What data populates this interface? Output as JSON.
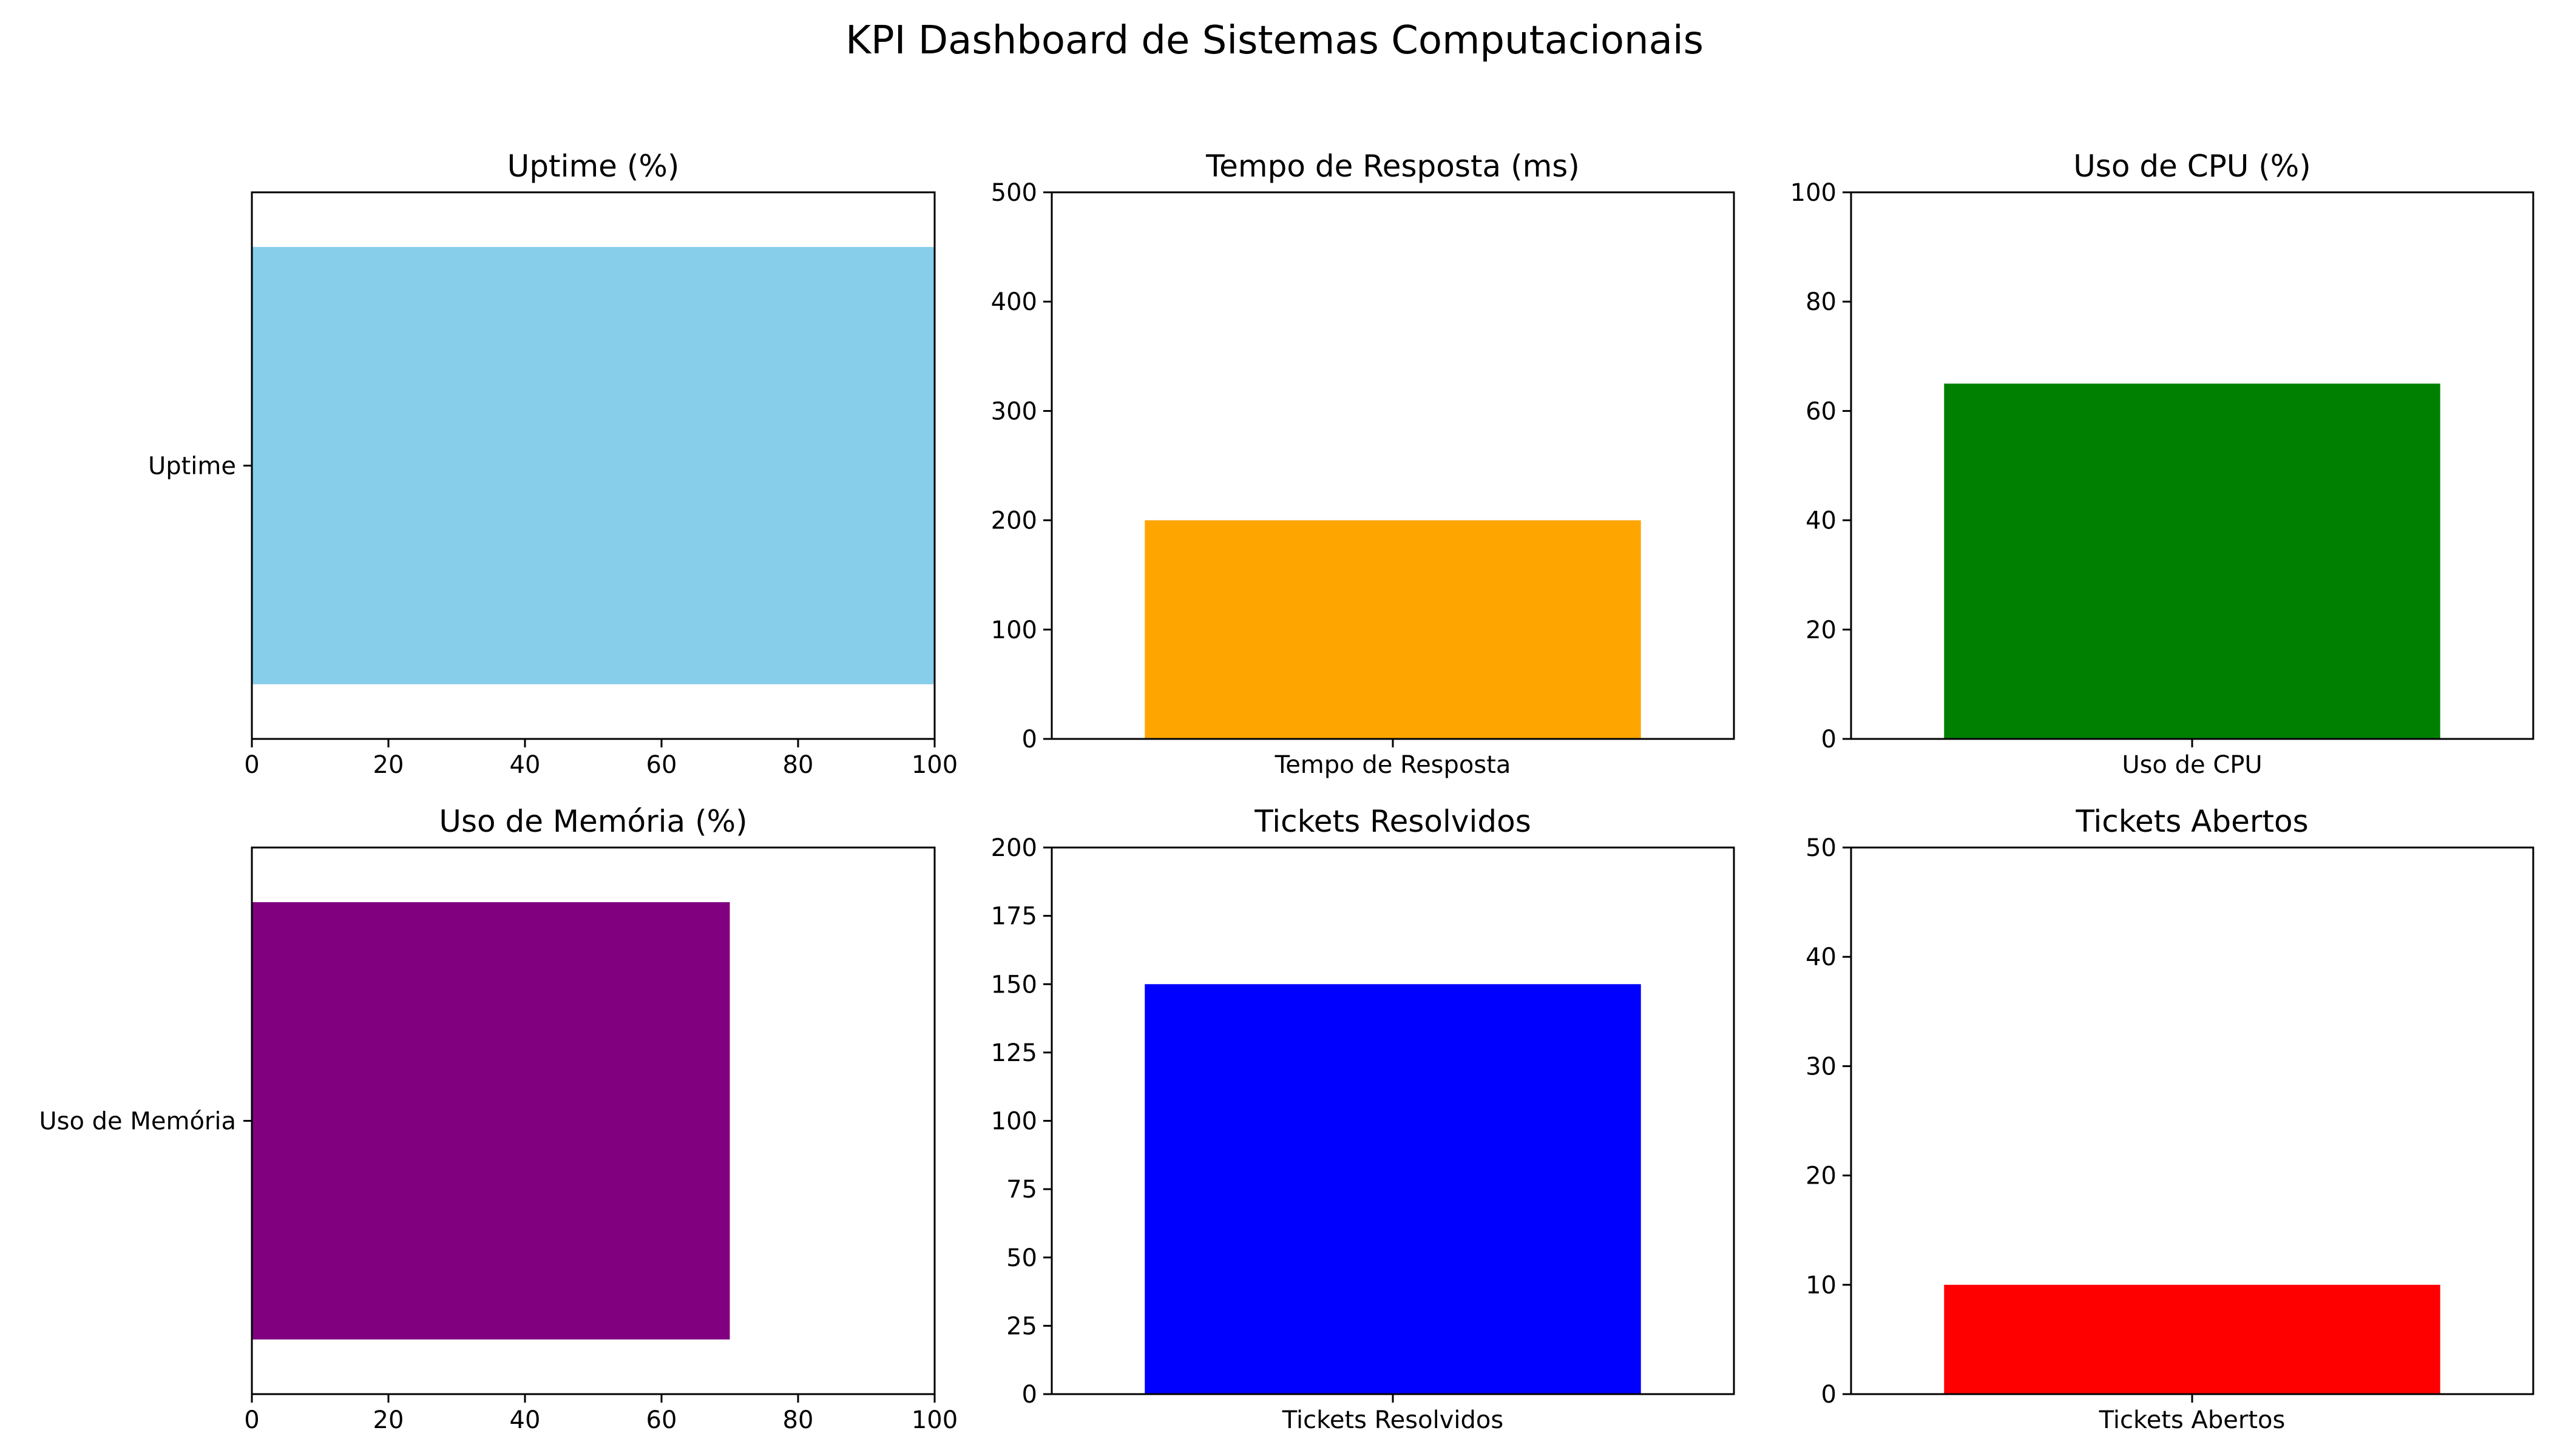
{
  "dashboard": {
    "title": "KPI Dashboard de Sistemas Computacionais"
  },
  "chart_data": [
    {
      "type": "bar",
      "orientation": "horizontal",
      "title": "Uptime (%)",
      "categories": [
        "Uptime"
      ],
      "values": [
        99.9
      ],
      "color": "#87ceeb",
      "xlim": [
        0,
        100
      ],
      "ticks": [
        0,
        20,
        40,
        60,
        80,
        100
      ]
    },
    {
      "type": "bar",
      "orientation": "vertical",
      "title": "Tempo de Resposta (ms)",
      "categories": [
        "Tempo de Resposta"
      ],
      "values": [
        200
      ],
      "color": "#ffa500",
      "ylim": [
        0,
        500
      ],
      "ticks": [
        0,
        100,
        200,
        300,
        400,
        500
      ]
    },
    {
      "type": "bar",
      "orientation": "vertical",
      "title": "Uso de CPU (%)",
      "categories": [
        "Uso de CPU"
      ],
      "values": [
        65
      ],
      "color": "#008000",
      "ylim": [
        0,
        100
      ],
      "ticks": [
        0,
        20,
        40,
        60,
        80,
        100
      ]
    },
    {
      "type": "bar",
      "orientation": "horizontal",
      "title": "Uso de Memória (%)",
      "categories": [
        "Uso de Memória"
      ],
      "values": [
        70
      ],
      "color": "#800080",
      "xlim": [
        0,
        100
      ],
      "ticks": [
        0,
        20,
        40,
        60,
        80,
        100
      ]
    },
    {
      "type": "bar",
      "orientation": "vertical",
      "title": "Tickets Resolvidos",
      "categories": [
        "Tickets Resolvidos"
      ],
      "values": [
        150
      ],
      "color": "#0000ff",
      "ylim": [
        0,
        200
      ],
      "ticks": [
        0,
        25,
        50,
        75,
        100,
        125,
        150,
        175,
        200
      ]
    },
    {
      "type": "bar",
      "orientation": "vertical",
      "title": "Tickets Abertos",
      "categories": [
        "Tickets Abertos"
      ],
      "values": [
        10
      ],
      "color": "#ff0000",
      "ylim": [
        0,
        50
      ],
      "ticks": [
        0,
        10,
        20,
        30,
        40,
        50
      ]
    }
  ]
}
